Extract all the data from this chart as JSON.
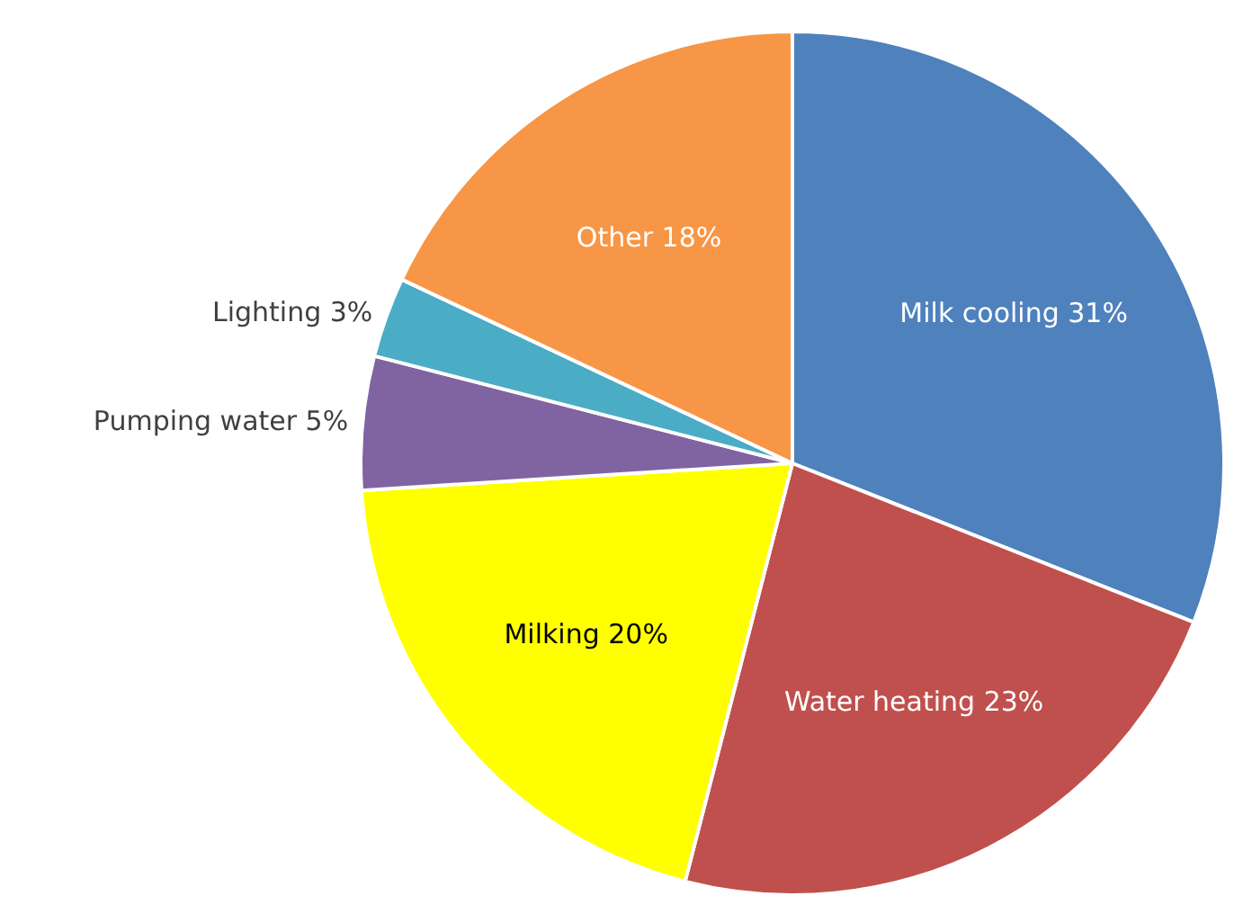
{
  "chart_data": {
    "type": "pie",
    "categories": [
      "Milk cooling",
      "Water heating",
      "Milking",
      "Pumping water",
      "Lighting",
      "Other"
    ],
    "values": [
      31,
      23,
      20,
      5,
      3,
      18
    ],
    "value_labels": [
      "31%",
      "23%",
      "20%",
      "5%",
      "3%",
      "18%"
    ],
    "colors": [
      "#4f81bd",
      "#c0504d",
      "#ffff00",
      "#8064a2",
      "#4bacc6",
      "#f79646"
    ],
    "legend": false
  }
}
